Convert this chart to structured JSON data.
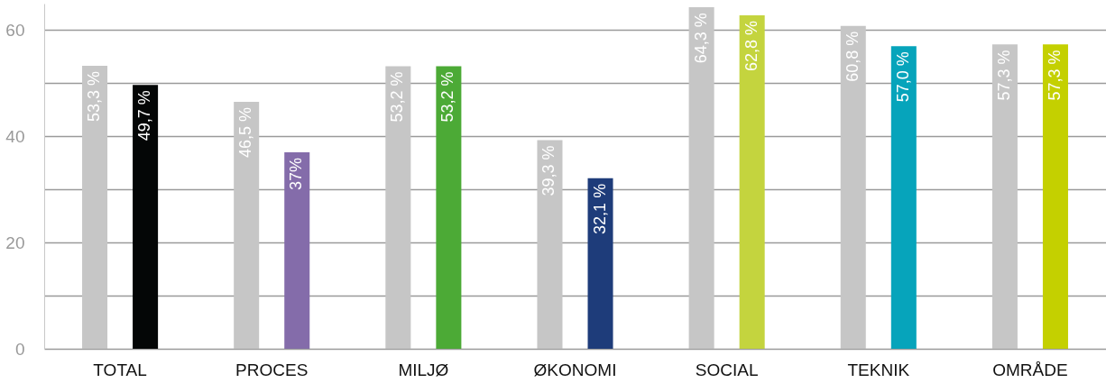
{
  "chart_data": {
    "type": "bar",
    "categories": [
      "TOTAL",
      "PROCES",
      "MILJØ",
      "ØKONOMI",
      "SOCIAL",
      "TEKNIK",
      "OMRÅDE"
    ],
    "series": [
      {
        "colors": [
          "#c6c6c6",
          "#c6c6c6",
          "#c6c6c6",
          "#c6c6c6",
          "#c6c6c6",
          "#c6c6c6",
          "#c6c6c6"
        ],
        "values": [
          53.3,
          46.5,
          53.2,
          39.3,
          64.3,
          60.8,
          57.3
        ],
        "value_labels": [
          "53,3 %",
          "46,5 %",
          "53,2 %",
          "39,3 %",
          "64,3 %",
          "60,8 %",
          "57,3 %"
        ]
      },
      {
        "colors": [
          "#040606",
          "#846caa",
          "#4caa36",
          "#1e3c7a",
          "#c4d43e",
          "#06a4bb",
          "#c4d000"
        ],
        "values": [
          49.7,
          37,
          53.2,
          32.1,
          62.8,
          57.0,
          57.3
        ],
        "value_labels": [
          "49,7 %",
          "37%",
          "53,2 %",
          "32,1 %",
          "62,8 %",
          "57,0 %",
          "57,3 %"
        ]
      }
    ],
    "ylim": [
      0,
      65
    ],
    "yticks": [
      0,
      {
        "value": 10,
        "label": null
      },
      20,
      {
        "value": 30,
        "label": null
      },
      40,
      {
        "value": 50,
        "label": null
      },
      60
    ],
    "grid": "y",
    "legend": false
  }
}
